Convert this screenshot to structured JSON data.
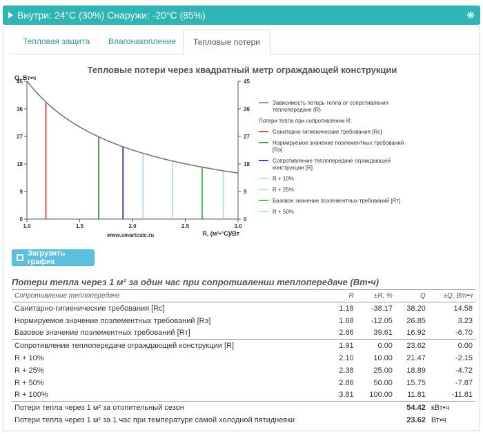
{
  "header": {
    "title": "Внутри: 24°C (30%) Снаружи: -20°C (85%)",
    "gear_icon": "snowflake-icon"
  },
  "tabs": [
    {
      "label": "Тепловая защита",
      "active": false
    },
    {
      "label": "Влагонакопление",
      "active": false
    },
    {
      "label": "Тепловые потери",
      "active": true
    }
  ],
  "chart_title": "Тепловые потери через квадратный метр ограждающей конструкции",
  "chart_data": {
    "type": "line",
    "title": "Тепловые потери через квадратный метр ограждающей конструкции",
    "ylabel": "Q, Вт•ч",
    "xlabel": "R, (м²•°С)/Вт",
    "xlim": [
      1.0,
      3.0
    ],
    "ylim": [
      0,
      45
    ],
    "xticks": [
      "1.0",
      "1.5",
      "2.0",
      "2.5",
      "3.0"
    ],
    "yticks": [
      "0",
      "9",
      "18",
      "27",
      "36",
      "45"
    ],
    "watermark": "www.smartcalc.ru",
    "curve": {
      "name": "Зависимость потерь тепла от сопротивления теплопередаче (R)",
      "color": "#777777",
      "k": 45.12
    },
    "legend_heading": "Потери тепла при сопротивлении R:",
    "markers": [
      {
        "name": "Санитарно-гигиенические требования [Rс]",
        "x": 1.18,
        "y": 38.2,
        "color": "#e02020"
      },
      {
        "name": "Нормируемое значение поэлементных требований [Rэ]",
        "x": 1.68,
        "y": 26.85,
        "color": "#1a8a1a"
      },
      {
        "name": "Сопротивление теплопередаче ограждающей конструкции [R]",
        "x": 1.91,
        "y": 23.62,
        "color": "#1010cc"
      },
      {
        "name": "R + 10%",
        "x": 2.1,
        "y": 21.47,
        "color": "#a8d8ea"
      },
      {
        "name": "R + 25%",
        "x": 2.38,
        "y": 18.89,
        "color": "#a8d8ea"
      },
      {
        "name": "Базовое значение поэлементных требований [Rт]",
        "x": 2.66,
        "y": 16.92,
        "color": "#22bb22"
      },
      {
        "name": "R + 50%",
        "x": 2.86,
        "y": 15.75,
        "color": "#a8d8ea"
      }
    ]
  },
  "button_label": "Загрузить график",
  "table": {
    "title": "Потери тепла через 1 м² за один час при сопротивлении теплопередаче (Вт•ч)",
    "headers": [
      "Сопротивление теплопередаче",
      "R",
      "±R, %",
      "Q",
      "±Q, Вт•ч"
    ],
    "group1": [
      [
        "Санитарно-гигиенические требования [Rс]",
        "1.18",
        "-38.17",
        "38.20",
        "14.58"
      ],
      [
        "Нормируемое значение поэлементных требований [Rэ]",
        "1.68",
        "-12.05",
        "26.85",
        "3.23"
      ],
      [
        "Базовое значение поэлементных требований [Rт]",
        "2.66",
        "39.61",
        "16.92",
        "-6.70"
      ]
    ],
    "group2": [
      [
        "Сопротивление теплопередаче ограждающей конструкции [R]",
        "1.91",
        "0.00",
        "23.62",
        "0.00"
      ],
      [
        "R + 10%",
        "2.10",
        "10.00",
        "21.47",
        "-2.15"
      ],
      [
        "R + 25%",
        "2.38",
        "25.00",
        "18.89",
        "-4.72"
      ],
      [
        "R + 50%",
        "2.86",
        "50.00",
        "15.75",
        "-7.87"
      ],
      [
        "R + 100%",
        "3.81",
        "100.00",
        "11.81",
        "-11.81"
      ]
    ],
    "summary": [
      {
        "label": "Потери тепла через 1 м² за отопительный сезон",
        "value": "54.42",
        "unit": "кВт•ч"
      },
      {
        "label": "Потери тепла через 1 м² за 1 час при температуре самой холодной пятидневки",
        "value": "23.62",
        "unit": "Вт•ч"
      }
    ]
  }
}
